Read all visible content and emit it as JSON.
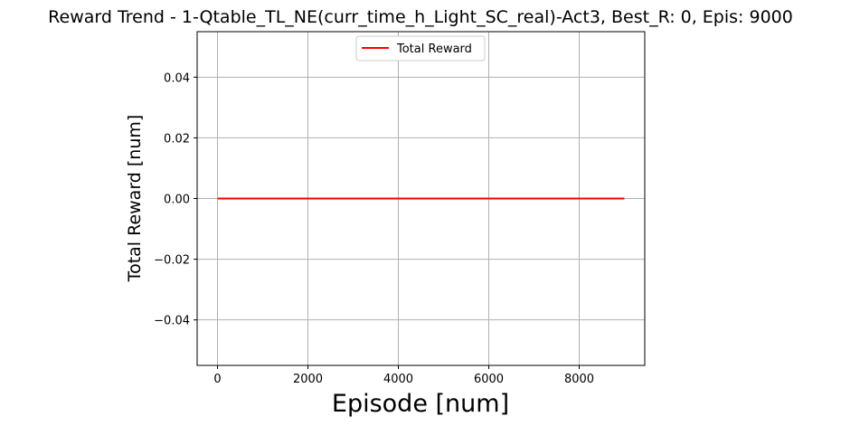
{
  "chart_data": {
    "type": "line",
    "title": "Reward Trend - 1-Qtable_TL_NE(curr_time_h_Light_SC_real)-Act3, Best_R: 0, Epis: 9000",
    "xlabel": "Episode [num]",
    "ylabel": "Total Reward [num]",
    "xlim": [
      -450,
      9450
    ],
    "ylim": [
      -0.055,
      0.055
    ],
    "x_ticks": [
      0,
      2000,
      4000,
      6000,
      8000
    ],
    "y_ticks": [
      -0.04,
      -0.02,
      0.0,
      0.02,
      0.04
    ],
    "x_tick_labels": [
      "0",
      "2000",
      "4000",
      "6000",
      "8000"
    ],
    "y_tick_labels": [
      "−0.04",
      "−0.02",
      "0.00",
      "0.02",
      "0.04"
    ],
    "grid": true,
    "legend_position": "upper-center",
    "series": [
      {
        "name": "Total Reward",
        "color": "#ff0000",
        "x": [
          0,
          9000
        ],
        "y": [
          0,
          0
        ]
      }
    ]
  }
}
